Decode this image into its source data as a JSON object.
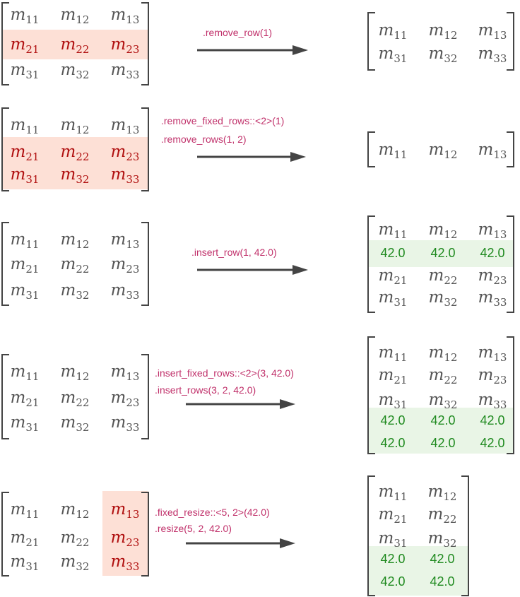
{
  "colors": {
    "pink_highlight": "#fde0d6",
    "green_highlight": "#e9f5e6",
    "removed_text": "#b01010",
    "inserted_text": "#1f8a1f",
    "label_text": "#c0306a",
    "matrix_text": "#555555"
  },
  "operations": [
    {
      "labels": [
        ".remove_row(1)"
      ],
      "before": {
        "rows": [
          [
            "11",
            "12",
            "13"
          ],
          [
            "21",
            "22",
            "23"
          ],
          [
            "31",
            "32",
            "33"
          ]
        ],
        "highlight_rows": [
          1
        ],
        "highlight_cols": []
      },
      "after": {
        "rows": [
          [
            "11",
            "12",
            "13"
          ],
          [
            "31",
            "32",
            "33"
          ]
        ],
        "green_rows": []
      }
    },
    {
      "labels": [
        ".remove_fixed_rows::<2>(1)",
        ".remove_rows(1, 2)"
      ],
      "before": {
        "rows": [
          [
            "11",
            "12",
            "13"
          ],
          [
            "21",
            "22",
            "23"
          ],
          [
            "31",
            "32",
            "33"
          ]
        ],
        "highlight_rows": [
          1,
          2
        ],
        "highlight_cols": []
      },
      "after": {
        "rows": [
          [
            "11",
            "12",
            "13"
          ]
        ],
        "green_rows": []
      }
    },
    {
      "labels": [
        ".insert_row(1, 42.0)"
      ],
      "before": {
        "rows": [
          [
            "11",
            "12",
            "13"
          ],
          [
            "21",
            "22",
            "23"
          ],
          [
            "31",
            "32",
            "33"
          ]
        ],
        "highlight_rows": [],
        "highlight_cols": []
      },
      "after": {
        "rows": [
          [
            "11",
            "12",
            "13"
          ],
          [
            "42.0",
            "42.0",
            "42.0"
          ],
          [
            "21",
            "22",
            "23"
          ],
          [
            "31",
            "32",
            "33"
          ]
        ],
        "green_rows": [
          1
        ]
      }
    },
    {
      "labels": [
        ".insert_fixed_rows::<2>(3, 42.0)",
        ".insert_rows(3, 2, 42.0)"
      ],
      "before": {
        "rows": [
          [
            "11",
            "12",
            "13"
          ],
          [
            "21",
            "22",
            "23"
          ],
          [
            "31",
            "32",
            "33"
          ]
        ],
        "highlight_rows": [],
        "highlight_cols": []
      },
      "after": {
        "rows": [
          [
            "11",
            "12",
            "13"
          ],
          [
            "21",
            "22",
            "23"
          ],
          [
            "31",
            "32",
            "33"
          ],
          [
            "42.0",
            "42.0",
            "42.0"
          ],
          [
            "42.0",
            "42.0",
            "42.0"
          ]
        ],
        "green_rows": [
          3,
          4
        ]
      }
    },
    {
      "labels": [
        ".fixed_resize::<5, 2>(42.0)",
        ".resize(5, 2, 42.0)"
      ],
      "before": {
        "rows": [
          [
            "11",
            "12",
            "13"
          ],
          [
            "21",
            "22",
            "23"
          ],
          [
            "31",
            "32",
            "33"
          ]
        ],
        "highlight_rows": [],
        "highlight_cols": [
          2
        ]
      },
      "after": {
        "rows": [
          [
            "11",
            "12"
          ],
          [
            "21",
            "22"
          ],
          [
            "31",
            "32"
          ],
          [
            "42.0",
            "42.0"
          ],
          [
            "42.0",
            "42.0"
          ]
        ],
        "green_rows": [
          3,
          4
        ]
      }
    }
  ]
}
